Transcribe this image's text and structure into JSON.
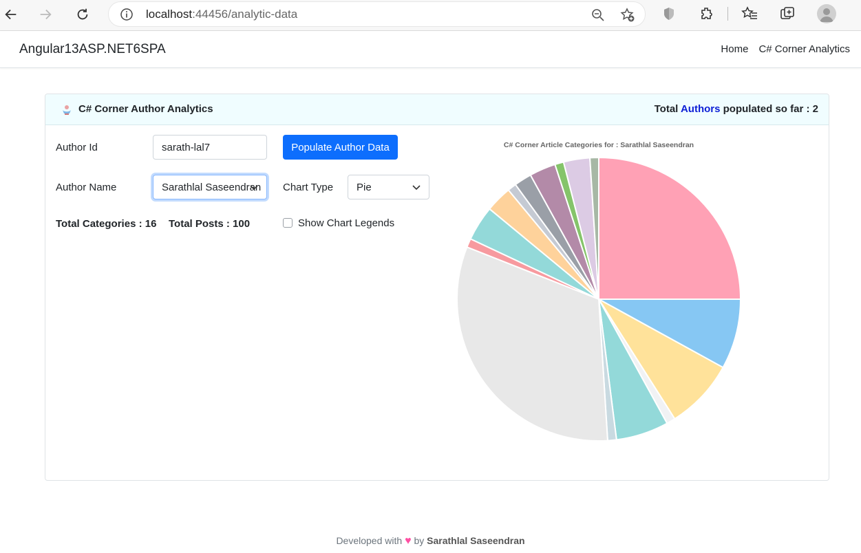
{
  "browser": {
    "url_host": "localhost",
    "url_rest": ":44456/analytic-data"
  },
  "navbar": {
    "brand": "Angular13ASP.NET6SPA",
    "links": [
      "Home",
      "C# Corner Analytics"
    ]
  },
  "card": {
    "title": "C# Corner Author Analytics",
    "total_prefix": "Total",
    "total_highlight": "Authors",
    "total_suffix": "populated so far : 2",
    "author_id_label": "Author Id",
    "author_id_value": "sarath-lal7",
    "populate_button": "Populate Author Data",
    "author_name_label": "Author Name",
    "author_name_value": "Sarathlal Saseendran",
    "chart_type_label": "Chart Type",
    "chart_type_value": "Pie",
    "total_categories": "Total Categories : 16",
    "total_posts": "Total Posts : 100",
    "show_legends_label": "Show Chart Legends",
    "show_legends_checked": false
  },
  "chart_data": {
    "type": "pie",
    "title": "C# Corner Article Categories for : Sarathlal Saseendran",
    "total": 100,
    "legend_visible": false,
    "start_angle_deg": 0,
    "direction": "clockwise",
    "slices": [
      {
        "value": 25,
        "color": "#ffa1b5"
      },
      {
        "value": 8,
        "color": "#86c7f3"
      },
      {
        "value": 8,
        "color": "#ffe29a"
      },
      {
        "value": 1,
        "color": "#f1f2f4"
      },
      {
        "value": 6,
        "color": "#93d9d9"
      },
      {
        "value": 1,
        "color": "#c9dae1"
      },
      {
        "value": 32,
        "color": "#e8e8e8"
      },
      {
        "value": 1,
        "color": "#f79a9f"
      },
      {
        "value": 4,
        "color": "#93d9d9"
      },
      {
        "value": 3,
        "color": "#fed29b"
      },
      {
        "value": 1,
        "color": "#c5cad3"
      },
      {
        "value": 2,
        "color": "#9a9fa7"
      },
      {
        "value": 3,
        "color": "#b38aa8"
      },
      {
        "value": 1,
        "color": "#85c46a"
      },
      {
        "value": 3,
        "color": "#dccbe4"
      },
      {
        "value": 1,
        "color": "#a7b8a5"
      }
    ]
  },
  "footer": {
    "prefix": "Developed with",
    "heart": "♥",
    "by": "by",
    "author": "Sarathlal Saseendran"
  }
}
